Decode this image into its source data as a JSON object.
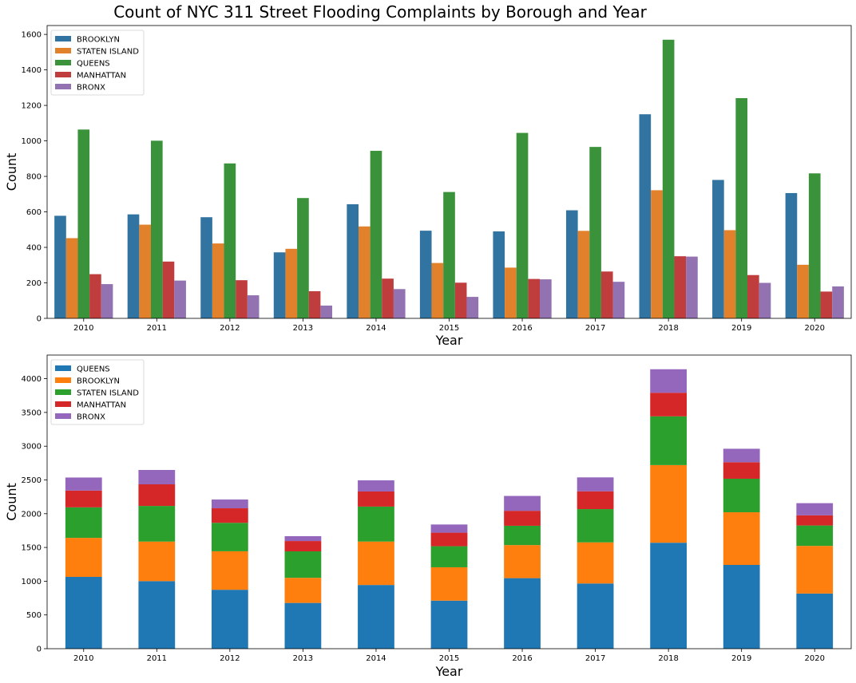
{
  "figure": {
    "title": "Count of NYC 311 Street Flooding Complaints by Borough and Year"
  },
  "chart_data": [
    {
      "type": "bar",
      "mode": "grouped",
      "title": "Count of NYC 311 Street Flooding Complaints by Borough and Year",
      "xlabel": "Year",
      "ylabel": "Count",
      "ylim": [
        0,
        1650
      ],
      "yticks": [
        0,
        200,
        400,
        600,
        800,
        1000,
        1200,
        1400,
        1600
      ],
      "grid": false,
      "legend_position": "upper-left",
      "categories": [
        "2010",
        "2011",
        "2012",
        "2013",
        "2014",
        "2015",
        "2016",
        "2017",
        "2018",
        "2019",
        "2020"
      ],
      "series": [
        {
          "name": "BROOKLYN",
          "color": "#3274a1",
          "values": [
            578,
            586,
            570,
            372,
            643,
            494,
            490,
            609,
            1150,
            780,
            706
          ]
        },
        {
          "name": "STATEN ISLAND",
          "color": "#e1812c",
          "values": [
            452,
            528,
            422,
            392,
            518,
            312,
            286,
            493,
            722,
            497,
            302
          ]
        },
        {
          "name": "QUEENS",
          "color": "#3a923a",
          "values": [
            1064,
            1001,
            873,
            678,
            944,
            712,
            1045,
            966,
            1570,
            1241,
            817
          ]
        },
        {
          "name": "MANHATTAN",
          "color": "#c03d3e",
          "values": [
            249,
            320,
            215,
            153,
            224,
            201,
            222,
            264,
            350,
            244,
            151
          ]
        },
        {
          "name": "BRONX",
          "color": "#9372b2",
          "values": [
            193,
            213,
            130,
            72,
            165,
            121,
            220,
            206,
            348,
            200,
            180
          ]
        }
      ]
    },
    {
      "type": "bar",
      "mode": "stacked",
      "xlabel": "Year",
      "ylabel": "Count",
      "ylim": [
        0,
        4350
      ],
      "yticks": [
        0,
        500,
        1000,
        1500,
        2000,
        2500,
        3000,
        3500,
        4000
      ],
      "grid": false,
      "legend_position": "upper-left",
      "categories": [
        "2010",
        "2011",
        "2012",
        "2013",
        "2014",
        "2015",
        "2016",
        "2017",
        "2018",
        "2019",
        "2020"
      ],
      "series": [
        {
          "name": "QUEENS",
          "color": "#1f77b4",
          "values": [
            1064,
            1001,
            873,
            678,
            944,
            712,
            1045,
            966,
            1570,
            1241,
            817
          ]
        },
        {
          "name": "BROOKLYN",
          "color": "#ff7f0e",
          "values": [
            578,
            586,
            570,
            372,
            643,
            494,
            490,
            609,
            1150,
            780,
            706
          ]
        },
        {
          "name": "STATEN ISLAND",
          "color": "#2ca02c",
          "values": [
            452,
            528,
            422,
            392,
            518,
            312,
            286,
            493,
            722,
            497,
            302
          ]
        },
        {
          "name": "MANHATTAN",
          "color": "#d62728",
          "values": [
            249,
            320,
            215,
            153,
            224,
            201,
            222,
            264,
            350,
            244,
            151
          ]
        },
        {
          "name": "BRONX",
          "color": "#9467bd",
          "values": [
            193,
            213,
            130,
            72,
            165,
            121,
            220,
            206,
            348,
            200,
            180
          ]
        }
      ]
    }
  ]
}
